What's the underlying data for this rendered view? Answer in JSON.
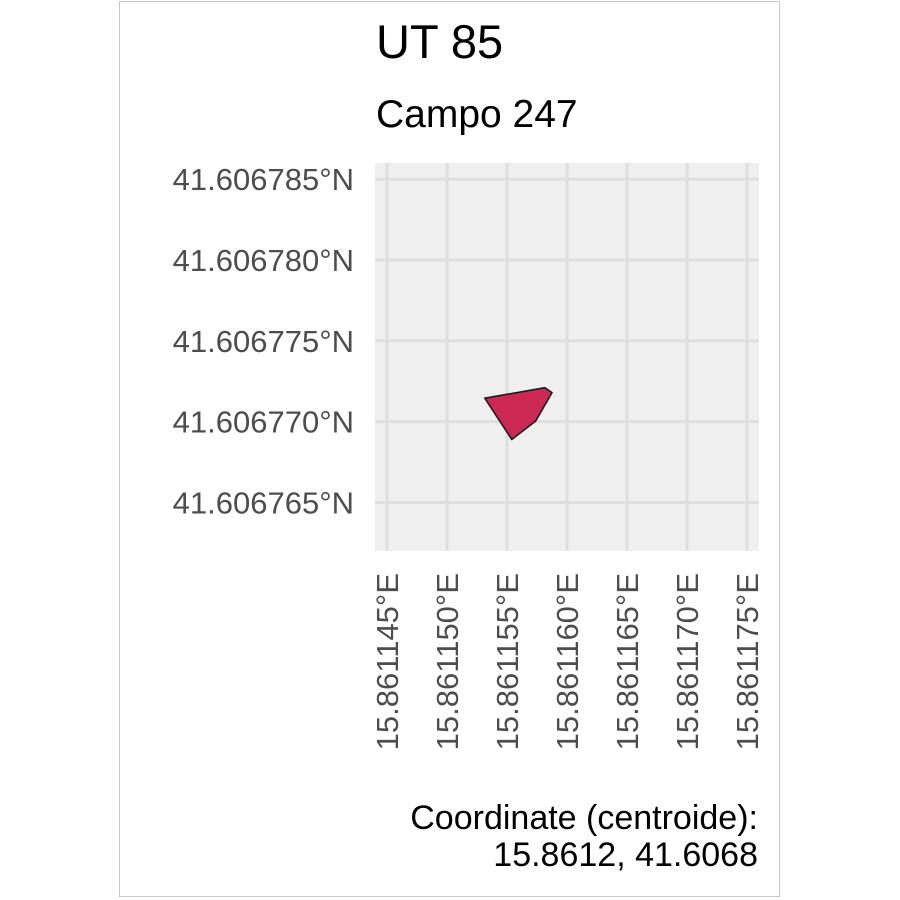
{
  "title": "UT 85",
  "subtitle": "Campo 247",
  "caption": {
    "line1": "Coordinate (centroide):",
    "line2": "15.8612, 41.6068"
  },
  "colors": {
    "panel": "#efefef",
    "grid": "#dedede",
    "polygon_fill": "#cc2a55",
    "polygon_stroke": "#1a1a1a",
    "tick_text": "#4d4d4d"
  },
  "chart_data": {
    "type": "map",
    "xlim": [
      15.861144,
      15.861176
    ],
    "ylim": [
      41.606762,
      41.606786
    ],
    "x_ticks": [
      {
        "value": 15.861145,
        "label": "15.861145°E"
      },
      {
        "value": 15.86115,
        "label": "15.861150°E"
      },
      {
        "value": 15.861155,
        "label": "15.861155°E"
      },
      {
        "value": 15.86116,
        "label": "15.861160°E"
      },
      {
        "value": 15.861165,
        "label": "15.861165°E"
      },
      {
        "value": 15.86117,
        "label": "15.861170°E"
      },
      {
        "value": 15.861175,
        "label": "15.861175°E"
      }
    ],
    "y_ticks": [
      {
        "value": 41.606785,
        "label": "41.606785°N"
      },
      {
        "value": 41.60678,
        "label": "41.606780°N"
      },
      {
        "value": 41.606775,
        "label": "41.606775°N"
      },
      {
        "value": 41.60677,
        "label": "41.606770°N"
      },
      {
        "value": 41.606765,
        "label": "41.606765°N"
      }
    ],
    "grid": true,
    "polygon": [
      [
        15.86115315,
        41.60677145
      ],
      [
        15.86115815,
        41.6067721
      ],
      [
        15.86115875,
        41.6067718
      ],
      [
        15.8611574,
        41.60677005
      ],
      [
        15.8611554,
        41.6067689
      ]
    ]
  }
}
